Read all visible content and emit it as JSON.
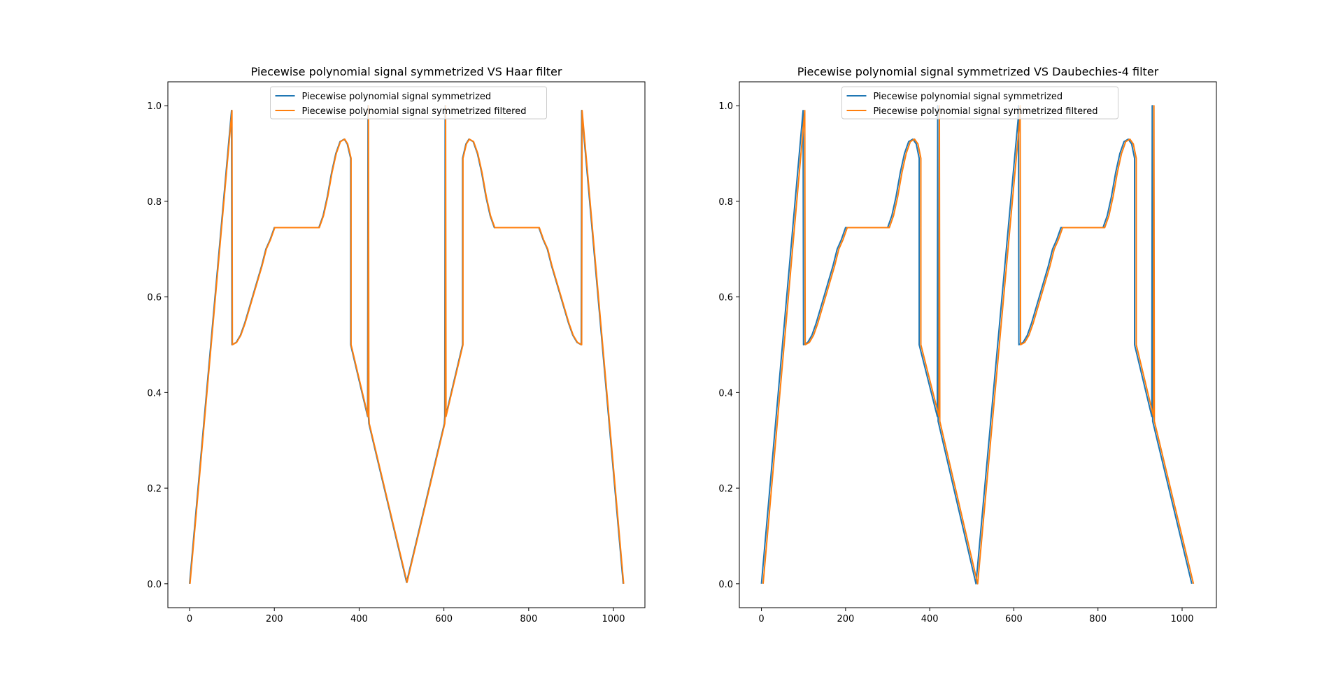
{
  "chart_data": [
    {
      "type": "line",
      "title": "Piecewise polynomial signal symmetrized VS Haar filter",
      "xlabel": "",
      "ylabel": "",
      "xlim": [
        -51.2,
        1074.2
      ],
      "ylim": [
        -0.05,
        1.05
      ],
      "xticks": [
        0,
        200,
        400,
        600,
        800,
        1000
      ],
      "yticks": [
        0.0,
        0.2,
        0.4,
        0.6,
        0.8,
        1.0
      ],
      "xtick_labels": [
        "0",
        "200",
        "400",
        "600",
        "800",
        "1000"
      ],
      "ytick_labels": [
        "0.0",
        "0.2",
        "0.4",
        "0.6",
        "0.8",
        "1.0"
      ],
      "grid": false,
      "legend_position": "top-center",
      "series": [
        {
          "name": "Piecewise polynomial signal symmetrized",
          "color": "#1f77b4",
          "shift": 0,
          "points": [
            [
              0,
              0
            ],
            [
              99,
              0.99
            ],
            [
              100,
              0.5
            ],
            [
              110,
              0.505
            ],
            [
              120,
              0.52
            ],
            [
              130,
              0.545
            ],
            [
              140,
              0.575
            ],
            [
              150,
              0.605
            ],
            [
              160,
              0.635
            ],
            [
              170,
              0.665
            ],
            [
              180,
              0.7
            ],
            [
              190,
              0.72
            ],
            [
              200,
              0.745
            ],
            [
              305,
              0.745
            ],
            [
              315,
              0.77
            ],
            [
              325,
              0.81
            ],
            [
              335,
              0.86
            ],
            [
              345,
              0.9
            ],
            [
              355,
              0.925
            ],
            [
              365,
              0.93
            ],
            [
              372,
              0.92
            ],
            [
              380,
              0.89
            ],
            [
              380,
              0.5
            ],
            [
              420,
              0.35
            ],
            [
              421,
              1.0
            ],
            [
              422,
              0.35
            ],
            [
              423,
              0.335
            ],
            [
              512,
              0.003
            ],
            [
              601,
              0.335
            ],
            [
              602,
              0.35
            ],
            [
              603,
              1.0
            ],
            [
              604,
              0.35
            ],
            [
              644,
              0.5
            ],
            [
              644,
              0.89
            ],
            [
              652,
              0.92
            ],
            [
              659,
              0.93
            ],
            [
              669,
              0.925
            ],
            [
              679,
              0.9
            ],
            [
              689,
              0.86
            ],
            [
              699,
              0.81
            ],
            [
              709,
              0.77
            ],
            [
              719,
              0.745
            ],
            [
              824,
              0.745
            ],
            [
              834,
              0.72
            ],
            [
              844,
              0.7
            ],
            [
              854,
              0.665
            ],
            [
              864,
              0.635
            ],
            [
              874,
              0.605
            ],
            [
              884,
              0.575
            ],
            [
              894,
              0.545
            ],
            [
              904,
              0.52
            ],
            [
              914,
              0.505
            ],
            [
              924,
              0.5
            ],
            [
              925,
              0.99
            ],
            [
              1023,
              0
            ]
          ]
        },
        {
          "name": "Piecewise polynomial signal symmetrized filtered",
          "color": "#ff7f0e",
          "shift": 1,
          "points": [
            [
              0,
              0
            ],
            [
              99,
              0.99
            ],
            [
              100,
              0.5
            ],
            [
              110,
              0.505
            ],
            [
              120,
              0.52
            ],
            [
              130,
              0.545
            ],
            [
              140,
              0.575
            ],
            [
              150,
              0.605
            ],
            [
              160,
              0.635
            ],
            [
              170,
              0.665
            ],
            [
              180,
              0.7
            ],
            [
              190,
              0.72
            ],
            [
              200,
              0.745
            ],
            [
              305,
              0.745
            ],
            [
              315,
              0.77
            ],
            [
              325,
              0.81
            ],
            [
              335,
              0.86
            ],
            [
              345,
              0.9
            ],
            [
              355,
              0.925
            ],
            [
              365,
              0.93
            ],
            [
              372,
              0.92
            ],
            [
              380,
              0.89
            ],
            [
              380,
              0.5
            ],
            [
              420,
              0.35
            ],
            [
              421,
              1.0
            ],
            [
              422,
              0.35
            ],
            [
              423,
              0.335
            ],
            [
              512,
              0.003
            ],
            [
              601,
              0.335
            ],
            [
              602,
              0.35
            ],
            [
              603,
              1.0
            ],
            [
              604,
              0.35
            ],
            [
              644,
              0.5
            ],
            [
              644,
              0.89
            ],
            [
              652,
              0.92
            ],
            [
              659,
              0.93
            ],
            [
              669,
              0.925
            ],
            [
              679,
              0.9
            ],
            [
              689,
              0.86
            ],
            [
              699,
              0.81
            ],
            [
              709,
              0.77
            ],
            [
              719,
              0.745
            ],
            [
              824,
              0.745
            ],
            [
              834,
              0.72
            ],
            [
              844,
              0.7
            ],
            [
              854,
              0.665
            ],
            [
              864,
              0.635
            ],
            [
              874,
              0.605
            ],
            [
              884,
              0.575
            ],
            [
              894,
              0.545
            ],
            [
              904,
              0.52
            ],
            [
              914,
              0.505
            ],
            [
              924,
              0.5
            ],
            [
              925,
              0.99
            ],
            [
              1023,
              0
            ]
          ]
        }
      ]
    },
    {
      "type": "line",
      "title": "Piecewise polynomial signal symmetrized VS Daubechies-4 filter",
      "xlabel": "",
      "ylabel": "",
      "xlim": [
        -52.5,
        1081.5
      ],
      "ylim": [
        -0.05,
        1.05
      ],
      "xticks": [
        0,
        200,
        400,
        600,
        800,
        1000
      ],
      "yticks": [
        0.0,
        0.2,
        0.4,
        0.6,
        0.8,
        1.0
      ],
      "xtick_labels": [
        "0",
        "200",
        "400",
        "600",
        "800",
        "1000"
      ],
      "ytick_labels": [
        "0.0",
        "0.2",
        "0.4",
        "0.6",
        "0.8",
        "1.0"
      ],
      "grid": false,
      "legend_position": "top-center",
      "series": [
        {
          "name": "Piecewise polynomial signal symmetrized",
          "color": "#1f77b4",
          "shift": 0,
          "points": [
            [
              0,
              0
            ],
            [
              99,
              0.99
            ],
            [
              100,
              0.5
            ],
            [
              110,
              0.505
            ],
            [
              120,
              0.52
            ],
            [
              130,
              0.545
            ],
            [
              140,
              0.575
            ],
            [
              150,
              0.605
            ],
            [
              160,
              0.635
            ],
            [
              170,
              0.665
            ],
            [
              180,
              0.7
            ],
            [
              190,
              0.72
            ],
            [
              200,
              0.745
            ],
            [
              300,
              0.745
            ],
            [
              310,
              0.77
            ],
            [
              320,
              0.81
            ],
            [
              330,
              0.86
            ],
            [
              340,
              0.9
            ],
            [
              350,
              0.925
            ],
            [
              360,
              0.93
            ],
            [
              368,
              0.92
            ],
            [
              375,
              0.89
            ],
            [
              375,
              0.5
            ],
            [
              418,
              0.35
            ],
            [
              419,
              1.0
            ],
            [
              420,
              0.34
            ],
            [
              510,
              0.0
            ],
            [
              610,
              0.97
            ],
            [
              611,
              1.0
            ],
            [
              612,
              0.5
            ],
            [
              622,
              0.505
            ],
            [
              632,
              0.52
            ],
            [
              642,
              0.545
            ],
            [
              652,
              0.575
            ],
            [
              662,
              0.605
            ],
            [
              672,
              0.635
            ],
            [
              682,
              0.665
            ],
            [
              692,
              0.7
            ],
            [
              702,
              0.72
            ],
            [
              712,
              0.745
            ],
            [
              812,
              0.745
            ],
            [
              822,
              0.77
            ],
            [
              832,
              0.81
            ],
            [
              842,
              0.86
            ],
            [
              852,
              0.9
            ],
            [
              862,
              0.925
            ],
            [
              872,
              0.93
            ],
            [
              880,
              0.92
            ],
            [
              887,
              0.89
            ],
            [
              887,
              0.5
            ],
            [
              928,
              0.35
            ],
            [
              929,
              1.0
            ],
            [
              930,
              0.34
            ],
            [
              1023,
              0.0
            ]
          ]
        },
        {
          "name": "Piecewise polynomial signal symmetrized filtered",
          "color": "#ff7f0e",
          "shift": 4,
          "points": [
            [
              0,
              0
            ],
            [
              99,
              0.99
            ],
            [
              100,
              0.5
            ],
            [
              110,
              0.505
            ],
            [
              120,
              0.52
            ],
            [
              130,
              0.545
            ],
            [
              140,
              0.575
            ],
            [
              150,
              0.605
            ],
            [
              160,
              0.635
            ],
            [
              170,
              0.665
            ],
            [
              180,
              0.7
            ],
            [
              190,
              0.72
            ],
            [
              200,
              0.745
            ],
            [
              300,
              0.745
            ],
            [
              310,
              0.77
            ],
            [
              320,
              0.81
            ],
            [
              330,
              0.86
            ],
            [
              340,
              0.9
            ],
            [
              350,
              0.925
            ],
            [
              360,
              0.93
            ],
            [
              368,
              0.92
            ],
            [
              375,
              0.89
            ],
            [
              375,
              0.5
            ],
            [
              418,
              0.35
            ],
            [
              419,
              1.0
            ],
            [
              420,
              0.34
            ],
            [
              510,
              0.0
            ],
            [
              610,
              0.97
            ],
            [
              611,
              1.0
            ],
            [
              612,
              0.5
            ],
            [
              622,
              0.505
            ],
            [
              632,
              0.52
            ],
            [
              642,
              0.545
            ],
            [
              652,
              0.575
            ],
            [
              662,
              0.605
            ],
            [
              672,
              0.635
            ],
            [
              682,
              0.665
            ],
            [
              692,
              0.7
            ],
            [
              702,
              0.72
            ],
            [
              712,
              0.745
            ],
            [
              812,
              0.745
            ],
            [
              822,
              0.77
            ],
            [
              832,
              0.81
            ],
            [
              842,
              0.86
            ],
            [
              852,
              0.9
            ],
            [
              862,
              0.925
            ],
            [
              872,
              0.93
            ],
            [
              880,
              0.92
            ],
            [
              887,
              0.89
            ],
            [
              887,
              0.5
            ],
            [
              928,
              0.35
            ],
            [
              929,
              1.0
            ],
            [
              930,
              0.34
            ],
            [
              1023,
              0.0
            ]
          ]
        }
      ]
    }
  ]
}
